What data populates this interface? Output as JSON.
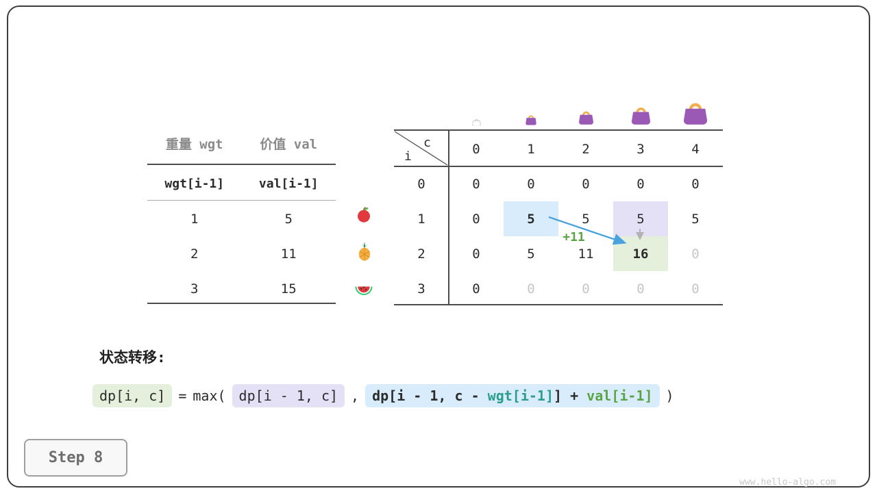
{
  "items_table": {
    "headers": [
      "重量 wgt",
      "价值 val"
    ],
    "subheaders": [
      "wgt[i-1]",
      "val[i-1]"
    ],
    "rows": [
      {
        "wgt": "1",
        "val": "5",
        "fruit": "apple-icon"
      },
      {
        "wgt": "2",
        "val": "11",
        "fruit": "pineapple-icon"
      },
      {
        "wgt": "3",
        "val": "15",
        "fruit": "watermelon-icon"
      }
    ]
  },
  "dp_table": {
    "corner_top": "c",
    "corner_bottom": "i",
    "col_headers": [
      "0",
      "1",
      "2",
      "3",
      "4"
    ],
    "rows": [
      {
        "label": "0",
        "cells": [
          "0",
          "0",
          "0",
          "0",
          "0"
        ]
      },
      {
        "label": "1",
        "cells": [
          "0",
          "5",
          "5",
          "5",
          "5"
        ]
      },
      {
        "label": "2",
        "cells": [
          "0",
          "5",
          "11",
          "16",
          "0"
        ]
      },
      {
        "label": "3",
        "cells": [
          "0",
          "0",
          "0",
          "0",
          "0"
        ]
      }
    ],
    "cell_styles": {
      "1-1": "hl-blue bold",
      "1-3": "hl-purple",
      "2-3": "hl-green bold",
      "2-4": "dim",
      "3-1": "dim",
      "3-2": "dim",
      "3-3": "dim",
      "3-4": "dim"
    },
    "annotation": "+11",
    "bag_icons": [
      "bag-icon-capacity-0",
      "bag-icon-capacity-1",
      "bag-icon-capacity-2",
      "bag-icon-capacity-3",
      "bag-icon-capacity-4"
    ]
  },
  "transition": {
    "label": "状态转移:",
    "lhs": "dp[i, c]",
    "equals": "=",
    "max_open": "max(",
    "option1": "dp[i - 1, c]",
    "comma": ",",
    "option2_prefix": "dp[i - 1, c - ",
    "option2_wgt": "wgt[i-1]",
    "option2_mid": "] + ",
    "option2_val": "val[i-1]",
    "close_paren": ")"
  },
  "footer": {
    "step_label": "Step 8",
    "site": "www.hello-algo.com"
  },
  "colors": {
    "teal": "#2a9d8f",
    "green": "#5ba345",
    "arrow_blue": "#4aa3df",
    "highlight_blue": "#d9ecfb",
    "highlight_purple": "#e4e1f6",
    "highlight_green": "#e4f0dc",
    "bag_purple": "#9b59b6",
    "bag_handle_orange": "#f2ae4e"
  }
}
